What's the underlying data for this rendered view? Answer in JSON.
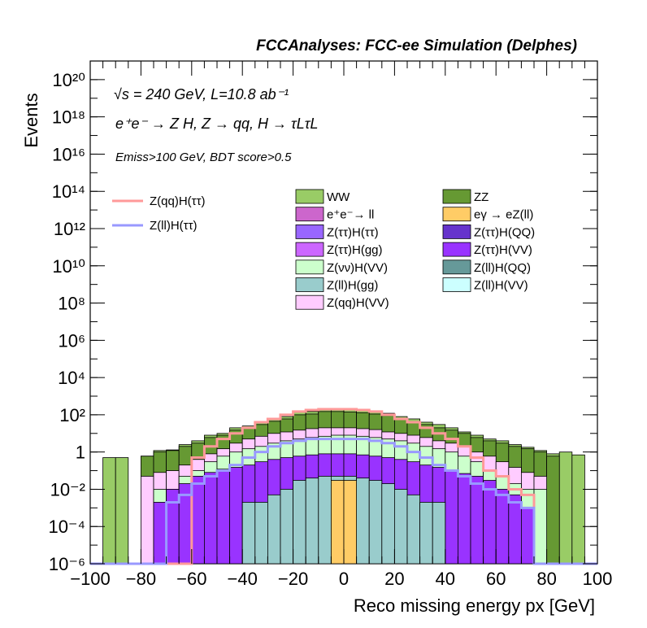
{
  "header": {
    "title": "FCCAnalyses: FCC-ee Simulation (Delphes)"
  },
  "annotations": {
    "energy": "√s = 240 GeV, L=10.8 ab⁻¹",
    "process": "e⁺e⁻ → Z H, Z → qq, H → τLτL",
    "cuts": "Emiss>100 GeV, BDT score>0.5"
  },
  "chart_data": {
    "type": "bar",
    "subtype": "stacked-histogram-with-signal-lines",
    "xlabel": "Reco missing energy px [GeV]",
    "ylabel": "Events",
    "xlim": [
      -100,
      100
    ],
    "ylim": [
      1e-06,
      1e+21
    ],
    "yscale": "log",
    "xticks": [
      -100,
      -80,
      -60,
      -40,
      -20,
      0,
      20,
      40,
      60,
      80,
      100
    ],
    "yticks": [
      {
        "value": 1e-06,
        "label": "10⁻⁶"
      },
      {
        "value": 0.0001,
        "label": "10⁻⁴"
      },
      {
        "value": 0.01,
        "label": "10⁻²"
      },
      {
        "value": 1,
        "label": "1"
      },
      {
        "value": 100.0,
        "label": "10²"
      },
      {
        "value": 10000.0,
        "label": "10⁴"
      },
      {
        "value": 1000000.0,
        "label": "10⁶"
      },
      {
        "value": 100000000.0,
        "label": "10⁸"
      },
      {
        "value": 10000000000.0,
        "label": "10¹⁰"
      },
      {
        "value": 1000000000000.0,
        "label": "10¹²"
      },
      {
        "value": 100000000000000.0,
        "label": "10¹⁴"
      },
      {
        "value": 1e+16,
        "label": "10¹⁶"
      },
      {
        "value": 1e+18,
        "label": "10¹⁸"
      },
      {
        "value": 1e+20,
        "label": "10²⁰"
      }
    ],
    "bin_edges": [
      -100,
      -95,
      -90,
      -85,
      -80,
      -75,
      -70,
      -65,
      -60,
      -55,
      -50,
      -45,
      -40,
      -35,
      -30,
      -25,
      -20,
      -15,
      -10,
      -5,
      0,
      5,
      10,
      15,
      20,
      25,
      30,
      35,
      40,
      45,
      50,
      55,
      60,
      65,
      70,
      75,
      80,
      85,
      90,
      95,
      100
    ],
    "stack_totals_at_bin_top": [
      {
        "component": "WW (total stack)",
        "values": [
          0,
          0.5,
          0.5,
          0,
          0.6,
          1.2,
          1.3,
          2.5,
          4,
          8,
          10,
          20,
          25,
          40,
          60,
          80,
          150,
          150,
          200,
          200,
          180,
          180,
          140,
          120,
          80,
          60,
          40,
          30,
          20,
          12,
          8,
          5,
          4,
          2.5,
          1.8,
          1.2,
          0.8,
          1.0,
          0.7,
          0
        ]
      },
      {
        "component": "ZZ",
        "values": [
          0,
          0,
          0,
          0,
          0.6,
          1.0,
          1.2,
          2,
          3,
          6,
          8,
          15,
          20,
          30,
          45,
          60,
          100,
          110,
          150,
          150,
          140,
          130,
          110,
          90,
          60,
          45,
          30,
          20,
          15,
          10,
          6,
          4,
          3,
          2,
          1.5,
          1,
          0.6,
          0,
          0,
          0
        ]
      },
      {
        "component": "Z(qq)H(VV)",
        "values": [
          0,
          0,
          0,
          0,
          0.05,
          0.08,
          0.1,
          0.2,
          0.4,
          0.8,
          1.5,
          3,
          5,
          7,
          10,
          12,
          15,
          18,
          20,
          20,
          20,
          18,
          16,
          12,
          10,
          8,
          6,
          4,
          3,
          2,
          1,
          0.6,
          0.3,
          0.15,
          0.08,
          0.05,
          0,
          0,
          0,
          0
        ]
      },
      {
        "component": "Z(νν)H(VV)",
        "values": [
          0,
          0,
          0,
          0,
          0,
          0.01,
          0.01,
          0.05,
          0.1,
          0.3,
          0.6,
          1,
          1.5,
          2,
          3,
          4,
          5,
          6,
          7,
          8,
          8,
          7,
          6,
          5,
          4,
          3,
          2,
          1.5,
          1,
          0.6,
          0.3,
          0.1,
          0.05,
          0.02,
          0.01,
          0.01,
          0,
          0,
          0,
          0
        ]
      },
      {
        "component": "Z(ττ)H(gg)",
        "values": [
          0,
          0,
          0,
          0,
          0,
          0.002,
          0.01,
          0.02,
          0.05,
          0.08,
          0.12,
          0.15,
          0.2,
          0.3,
          0.4,
          0.5,
          0.6,
          0.7,
          0.8,
          0.8,
          0.8,
          0.7,
          0.6,
          0.5,
          0.4,
          0.3,
          0.2,
          0.15,
          0.1,
          0.07,
          0.05,
          0.03,
          0.01,
          0.005,
          0.001,
          0,
          0,
          0,
          0,
          0
        ]
      },
      {
        "component": "Z(ll)H(gg)",
        "values": [
          0,
          0,
          0,
          0,
          0,
          0,
          0,
          0,
          0,
          0,
          0,
          0,
          0.002,
          0.002,
          0.005,
          0.01,
          0.03,
          0.04,
          0.05,
          0.05,
          0.05,
          0.04,
          0.03,
          0.02,
          0.01,
          0.005,
          0.002,
          0.002,
          0,
          0,
          0,
          0,
          0,
          0,
          0,
          0,
          0,
          0,
          0,
          0
        ]
      },
      {
        "component": "eγ → eZ(ll)",
        "values": [
          0,
          0,
          0,
          0,
          0,
          0,
          0,
          0,
          0,
          0,
          0,
          0,
          0,
          0,
          0,
          0,
          0,
          0,
          0,
          0.03,
          0.03,
          0,
          0,
          0,
          0,
          0,
          0,
          0,
          0,
          0,
          0,
          0,
          0,
          0,
          0,
          0,
          0,
          0,
          0,
          0
        ]
      }
    ],
    "series": [
      {
        "name": "Z(qq)H(ττ)",
        "style": "line",
        "color": "#ff9999",
        "values": [
          0,
          0,
          0,
          0,
          0,
          0,
          0,
          0,
          0.5,
          2,
          5,
          10,
          20,
          40,
          60,
          100,
          150,
          180,
          200,
          200,
          200,
          180,
          150,
          100,
          60,
          40,
          20,
          10,
          5,
          2,
          0.5,
          0.1,
          0.05,
          0.01,
          0.005,
          0,
          0,
          0,
          0,
          0
        ]
      },
      {
        "name": "Z(ll)H(ττ)",
        "style": "line",
        "color": "#9999ff",
        "values": [
          0,
          0,
          0,
          0,
          0,
          0,
          0.002,
          0.005,
          0.02,
          0.05,
          0.1,
          0.2,
          0.5,
          1,
          2,
          3,
          4,
          5,
          5,
          5,
          5,
          5,
          4,
          3,
          2,
          1,
          0.5,
          0.2,
          0.1,
          0.05,
          0.02,
          0.01,
          0.005,
          0.002,
          0.001,
          0,
          0,
          0,
          0,
          0
        ]
      }
    ],
    "legend": {
      "signal": [
        {
          "name": "Z(qq)H(ττ)",
          "color": "#ff9999",
          "style": "line"
        },
        {
          "name": "Z(ll)H(ττ)",
          "color": "#9999ff",
          "style": "line"
        }
      ],
      "background": [
        {
          "name": "WW",
          "color": "#99cc66"
        },
        {
          "name": "ZZ",
          "color": "#669933"
        },
        {
          "name": "e⁺e⁻→ ll",
          "color": "#cc66cc"
        },
        {
          "name": "eγ → eZ(ll)",
          "color": "#ffcc66"
        },
        {
          "name": "Z(ττ)H(ττ)",
          "color": "#9966ff"
        },
        {
          "name": "Z(ττ)H(QQ)",
          "color": "#6633cc"
        },
        {
          "name": "Z(ττ)H(gg)",
          "color": "#cc66ff"
        },
        {
          "name": "Z(ττ)H(VV)",
          "color": "#9933ff"
        },
        {
          "name": "Z(νν)H(VV)",
          "color": "#ccffcc"
        },
        {
          "name": "Z(ll)H(QQ)",
          "color": "#669999"
        },
        {
          "name": "Z(ll)H(gg)",
          "color": "#99cccc"
        },
        {
          "name": "Z(ll)H(VV)",
          "color": "#ccffff"
        },
        {
          "name": "Z(qq)H(VV)",
          "color": "#ffccff"
        }
      ]
    }
  }
}
